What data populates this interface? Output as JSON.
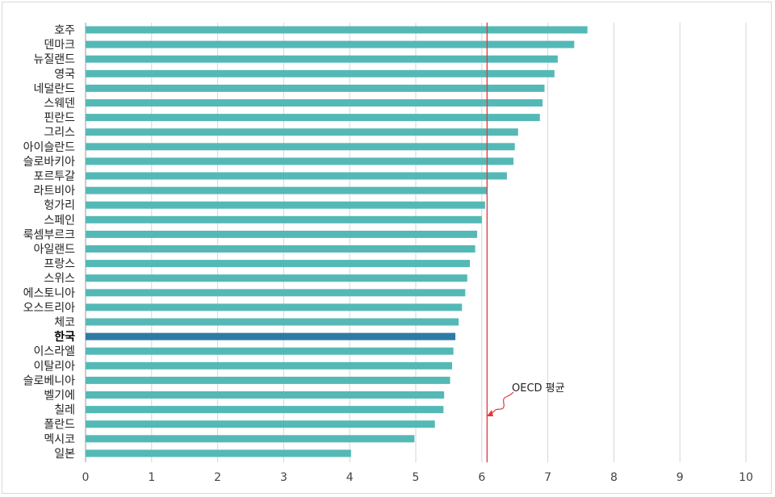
{
  "chart_data": {
    "type": "bar",
    "orientation": "horizontal",
    "title": "",
    "xlabel": "",
    "ylabel": "",
    "xlim": [
      0,
      10
    ],
    "xticks": [
      0,
      1,
      2,
      3,
      4,
      5,
      6,
      7,
      8,
      9,
      10
    ],
    "grid": "vertical",
    "categories": [
      "호주",
      "덴마크",
      "뉴질랜드",
      "영국",
      "네덜란드",
      "스웨덴",
      "핀란드",
      "그리스",
      "아이슬란드",
      "슬로바키아",
      "포르투갈",
      "라트비아",
      "헝가리",
      "스페인",
      "룩셈부르크",
      "아일랜드",
      "프랑스",
      "스위스",
      "에스토니아",
      "오스트리아",
      "체코",
      "한국",
      "이스라엘",
      "이탈리아",
      "슬로베니아",
      "벨기에",
      "칠레",
      "폴란드",
      "멕시코",
      "일본"
    ],
    "values": [
      7.6,
      7.4,
      7.15,
      7.1,
      6.95,
      6.92,
      6.88,
      6.55,
      6.5,
      6.48,
      6.38,
      6.08,
      6.05,
      6.0,
      5.93,
      5.9,
      5.82,
      5.78,
      5.75,
      5.7,
      5.65,
      5.6,
      5.57,
      5.55,
      5.52,
      5.43,
      5.42,
      5.29,
      4.98,
      4.02
    ],
    "highlight": "한국",
    "reference_line": {
      "label": "OECD 평균",
      "value": 6.08
    },
    "colors": {
      "bar": "#54b9b6",
      "highlight": "#2e7aa6",
      "reference": "#e0393e",
      "grid": "#d6d6d6"
    }
  }
}
